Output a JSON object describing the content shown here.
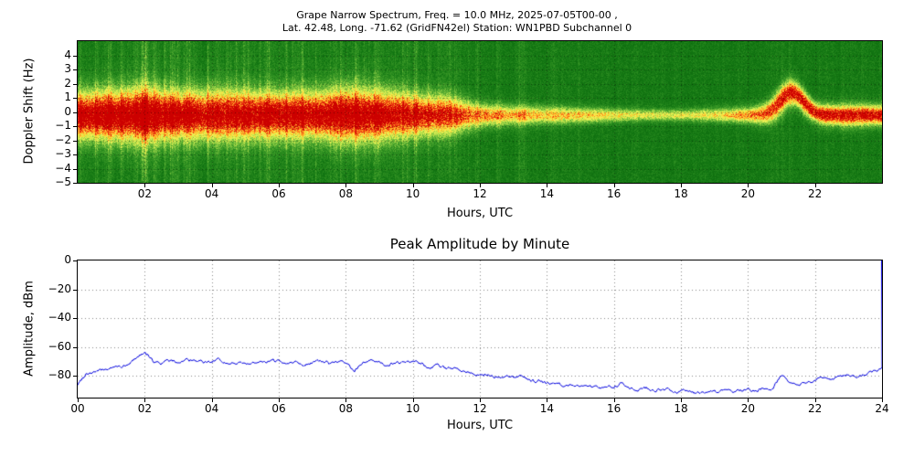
{
  "chart_data": [
    {
      "type": "heatmap",
      "title_line1": "Grape Narrow Spectrum, Freq. = 10.0 MHz, 2025-07-05T00-00 ,",
      "title_line2": "Lat.  42.48, Long. -71.62 (GridFN42el) Station: WN1PBD Subchannel 0",
      "xlabel": "Hours, UTC",
      "ylabel": "Doppler Shift (Hz)",
      "xlim": [
        0,
        24
      ],
      "ylim": [
        -5,
        5
      ],
      "xticks": [
        2,
        4,
        6,
        8,
        10,
        12,
        14,
        16,
        18,
        20,
        22
      ],
      "xtick_labels": [
        "02",
        "04",
        "06",
        "08",
        "10",
        "12",
        "14",
        "16",
        "18",
        "20",
        "22"
      ],
      "yticks": [
        4,
        3,
        2,
        1,
        0,
        -1,
        -2,
        -3,
        -4,
        -5
      ],
      "ytick_labels": [
        "4",
        "3",
        "2",
        "1",
        "0",
        "−1",
        "−2",
        "−3",
        "−4",
        "−5"
      ],
      "grid": true,
      "colormap_stops": [
        [
          0,
          "#004d00"
        ],
        [
          0.35,
          "#147814"
        ],
        [
          0.5,
          "#3c9b28"
        ],
        [
          0.6,
          "#7ec440"
        ],
        [
          0.68,
          "#c8e84e"
        ],
        [
          0.74,
          "#f4f45a"
        ],
        [
          0.8,
          "#ffd02e"
        ],
        [
          0.86,
          "#ff8c1e"
        ],
        [
          0.92,
          "#f03c14"
        ],
        [
          1,
          "#cc0000"
        ]
      ],
      "band": {
        "center_hz": -0.2,
        "intensity_by_hour": [
          0.95,
          0.95,
          0.95,
          0.9,
          0.9,
          0.9,
          0.9,
          0.9,
          0.95,
          0.9,
          0.85,
          0.8,
          0.7,
          0.65,
          0.6,
          0.6,
          0.55,
          0.5,
          0.5,
          0.55,
          0.7,
          0.85,
          0.9,
          0.9,
          0.9
        ],
        "width_hz_by_hour": [
          1.2,
          1.3,
          1.4,
          1.2,
          1.3,
          1.2,
          1.2,
          1.2,
          1.4,
          1.3,
          1.1,
          1.0,
          0.6,
          0.5,
          0.45,
          0.4,
          0.35,
          0.3,
          0.3,
          0.35,
          0.4,
          0.7,
          0.5,
          0.55,
          0.5
        ],
        "streak_by_hour": [
          0.8,
          0.8,
          0.9,
          0.8,
          0.9,
          0.8,
          0.8,
          0.8,
          0.9,
          0.9,
          0.8,
          0.8,
          0.5,
          0.5,
          0.4,
          0.35,
          0.3,
          0.25,
          0.2,
          0.2,
          0.3,
          0.4,
          0.35,
          0.3,
          0.3
        ],
        "hump": {
          "time_utc": 21.3,
          "height_hz": 1.6,
          "sigma_hours": 0.35
        }
      }
    },
    {
      "type": "line",
      "title": "Peak Amplitude by Minute",
      "xlabel": "Hours, UTC",
      "ylabel": "Amplitude, dBm",
      "xlim": [
        0,
        24
      ],
      "ylim": [
        -95,
        0
      ],
      "xticks": [
        0,
        2,
        4,
        6,
        8,
        10,
        12,
        14,
        16,
        18,
        20,
        22,
        24
      ],
      "xtick_labels": [
        "00",
        "02",
        "04",
        "06",
        "08",
        "10",
        "12",
        "14",
        "16",
        "18",
        "20",
        "22",
        "24"
      ],
      "yticks": [
        0,
        -20,
        -40,
        -60,
        -80
      ],
      "ytick_labels": [
        "0",
        "−20",
        "−40",
        "−60",
        "−80"
      ],
      "grid": true,
      "line_color": "#0000dd",
      "x_start": 0,
      "x_step_hours": 0.25,
      "values_dbm": [
        -86,
        -78,
        -77,
        -76,
        -74.5,
        -73.5,
        -73,
        -67,
        -63.5,
        -70,
        -71,
        -69.5,
        -70.5,
        -68.5,
        -70,
        -71,
        -70,
        -69,
        -71.5,
        -70,
        -72,
        -70.5,
        -71,
        -70,
        -69.5,
        -71,
        -70,
        -72,
        -70.5,
        -69.5,
        -71,
        -70,
        -71.5,
        -76,
        -71,
        -70,
        -71,
        -72.5,
        -70.5,
        -71,
        -70,
        -72,
        -74,
        -73,
        -75,
        -73,
        -76.5,
        -78,
        -79.5,
        -78.5,
        -81,
        -80,
        -81.5,
        -80.5,
        -84,
        -83,
        -85.5,
        -84.5,
        -86.5,
        -85.5,
        -87,
        -88,
        -87,
        -88.5,
        -87.5,
        -84.5,
        -88,
        -89,
        -88.5,
        -90,
        -89.5,
        -91,
        -90.5,
        -91,
        -92,
        -91.5,
        -91,
        -90.5,
        -91,
        -90,
        -89.5,
        -90,
        -88.5,
        -89,
        -79,
        -84,
        -86,
        -84.5,
        -83,
        -80.5,
        -82,
        -80.5,
        -79.5,
        -81,
        -78.5,
        -76,
        -75
      ],
      "right_edge_spike_dbm": 0
    }
  ]
}
